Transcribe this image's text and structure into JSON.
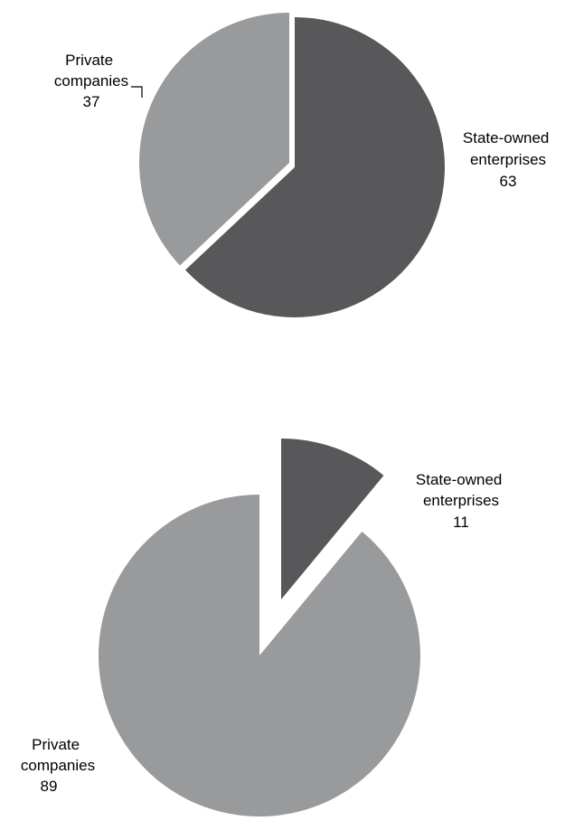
{
  "chart_data": [
    {
      "type": "pie",
      "slices": [
        {
          "label": [
            "State-owned",
            "enterprises"
          ],
          "value": 63,
          "display": "63",
          "color": "#58585a"
        },
        {
          "label": [
            "Private",
            "companies"
          ],
          "value": 37,
          "display": "37",
          "color": "#999a9c"
        }
      ]
    },
    {
      "type": "pie",
      "slices": [
        {
          "label": [
            "State-owned",
            "enterprises"
          ],
          "value": 11,
          "display": "11",
          "color": "#58585a"
        },
        {
          "label": [
            "Private",
            "companies"
          ],
          "value": 89,
          "display": "89",
          "color": "#999a9c"
        }
      ]
    }
  ]
}
